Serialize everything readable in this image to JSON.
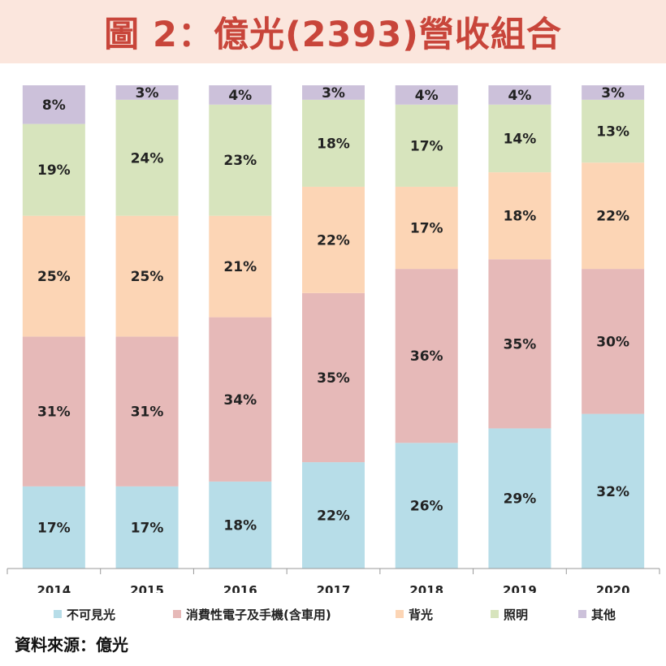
{
  "title": "圖 2：億光(2393)營收組合",
  "source": "資料來源：億光",
  "chart_data": {
    "type": "bar",
    "stacked": true,
    "categories": [
      "2014",
      "2015",
      "2016",
      "2017",
      "2018",
      "2019",
      "2020"
    ],
    "ylim": [
      0,
      100
    ],
    "grid": false,
    "legend_position": "bottom",
    "series": [
      {
        "name": "不可見光",
        "color": "#b7dde8",
        "values": [
          17,
          17,
          18,
          22,
          26,
          29,
          32
        ]
      },
      {
        "name": "消費性電子及手機(含車用)",
        "color": "#e6b9b8",
        "values": [
          31,
          31,
          34,
          35,
          36,
          35,
          30
        ]
      },
      {
        "name": "背光",
        "color": "#fcd5b5",
        "values": [
          25,
          25,
          21,
          22,
          17,
          18,
          22
        ]
      },
      {
        "name": "照明",
        "color": "#d7e4bd",
        "values": [
          19,
          24,
          23,
          18,
          17,
          14,
          13
        ]
      },
      {
        "name": "其他",
        "color": "#ccc1da",
        "values": [
          8,
          3,
          4,
          3,
          4,
          4,
          3
        ]
      }
    ]
  }
}
